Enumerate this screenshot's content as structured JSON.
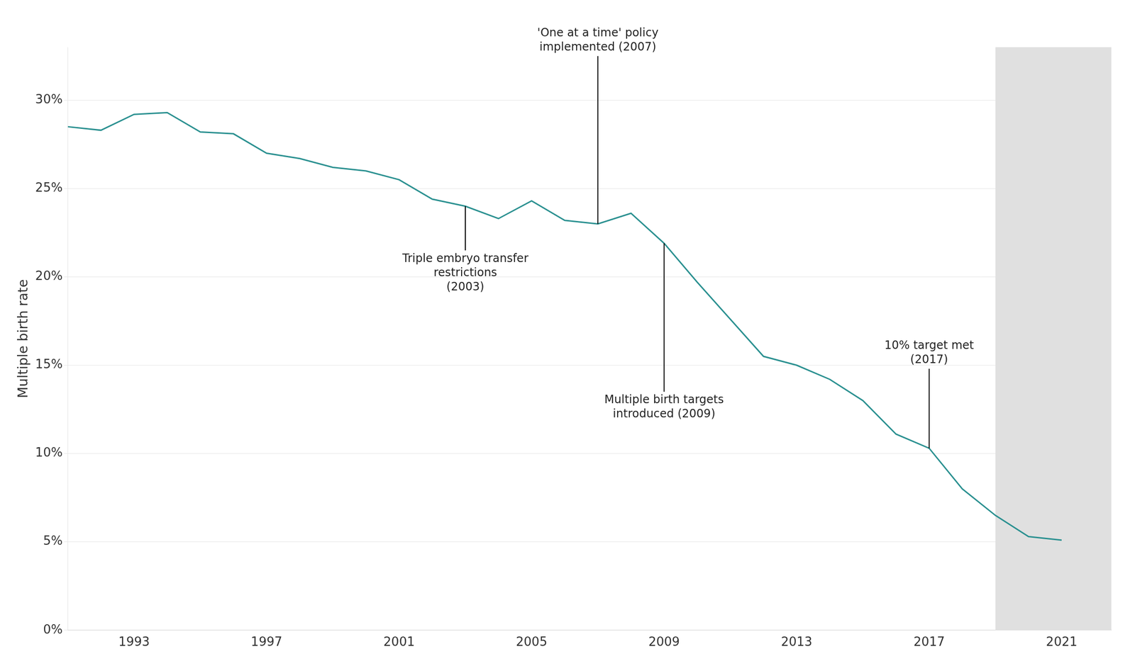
{
  "chart_data": {
    "type": "line",
    "x": [
      1991,
      1992,
      1993,
      1994,
      1995,
      1996,
      1997,
      1998,
      1999,
      2000,
      2001,
      2002,
      2003,
      2004,
      2005,
      2006,
      2007,
      2008,
      2009,
      2010,
      2011,
      2012,
      2013,
      2014,
      2015,
      2016,
      2017,
      2018,
      2019,
      2020,
      2021
    ],
    "values": [
      28.5,
      28.3,
      29.2,
      29.3,
      28.2,
      28.1,
      27.0,
      26.7,
      26.2,
      26.0,
      25.5,
      24.4,
      24.0,
      23.3,
      24.3,
      23.2,
      23.0,
      23.6,
      21.9,
      19.7,
      17.6,
      15.5,
      15.0,
      14.2,
      13.0,
      11.1,
      10.3,
      8.0,
      6.5,
      5.3,
      5.1
    ],
    "color": "#2a9090",
    "ylabel": "Multiple birth rate",
    "xlim": [
      1991,
      2022.5
    ],
    "xticks": [
      1993,
      1997,
      2001,
      2005,
      2009,
      2013,
      2017,
      2021
    ],
    "ylim": [
      0,
      33
    ],
    "yticks": [
      {
        "value": 0,
        "label": "0%"
      },
      {
        "value": 5,
        "label": "5%"
      },
      {
        "value": 10,
        "label": "10%"
      },
      {
        "value": 15,
        "label": "15%"
      },
      {
        "value": 20,
        "label": "20%"
      },
      {
        "value": 25,
        "label": "25%"
      },
      {
        "value": 30,
        "label": "30%"
      }
    ],
    "grid": true,
    "shaded_region": {
      "x_start": 2019,
      "x_end": 2022.5,
      "color": "#e0e0e0"
    },
    "annotations": [
      {
        "text": "Triple embryo transfer\nrestrictions\n(2003)",
        "x": 2003,
        "y_start": 24.0,
        "y_end": 21.5
      },
      {
        "text": "'One at a time' policy\nimplemented (2007)",
        "x": 2007,
        "y_start": 23.0,
        "y_end": 32.5
      },
      {
        "text": "Multiple birth targets\nintroduced (2009)",
        "x": 2009,
        "y_start": 21.9,
        "y_end": 13.5
      },
      {
        "text": "10% target met\n(2017)",
        "x": 2017,
        "y_start": 10.3,
        "y_end": 14.8
      }
    ]
  }
}
